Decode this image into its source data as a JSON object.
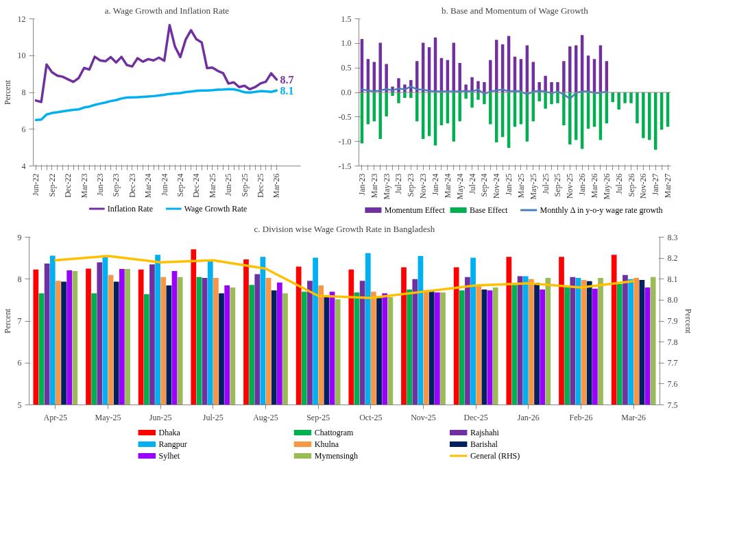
{
  "chart_data": [
    {
      "type": "line",
      "title": "a. Wage Growth and Inflation Rate",
      "ylabel": "Percent",
      "ylim": [
        4,
        12
      ],
      "yticks": [
        4,
        6,
        8,
        10,
        12
      ],
      "legend": "bottom",
      "categories": [
        "Jun-22",
        null,
        null,
        "Sep-22",
        null,
        null,
        "Dec-22",
        null,
        null,
        "Mar-23",
        null,
        null,
        "Jun-23",
        null,
        null,
        "Sep-23",
        null,
        null,
        "Dec-23",
        null,
        null,
        "Mar-24",
        null,
        null,
        "Jun-24",
        null,
        null,
        "Sep-24",
        null,
        null,
        "Dec-24",
        null,
        null,
        "Mar-25",
        null,
        null,
        "Jun-25",
        null,
        null,
        "Sep-25",
        null,
        null,
        "Dec-25",
        null,
        null,
        "Mar-26"
      ],
      "series": [
        {
          "name": "Inflation Rate",
          "color": "#7030a0",
          "values": [
            7.56,
            7.48,
            9.52,
            9.1,
            8.91,
            8.85,
            8.71,
            8.57,
            8.78,
            9.33,
            9.24,
            9.94,
            9.74,
            9.69,
            9.92,
            9.63,
            9.93,
            9.49,
            9.41,
            9.86,
            9.67,
            9.81,
            9.74,
            9.89,
            9.72,
            11.66,
            10.49,
            9.92,
            10.87,
            11.38,
            10.89,
            10.72,
            9.32,
            9.35,
            9.17,
            9.05,
            8.48,
            8.55,
            8.29,
            8.36,
            8.17,
            8.29,
            8.49,
            8.58,
            9.04,
            8.7
          ],
          "value_labels": [
            null,
            null,
            null,
            null,
            null,
            null,
            null,
            null,
            null,
            null,
            null,
            null,
            null,
            null,
            null,
            null,
            null,
            null,
            null,
            null,
            null,
            null,
            null,
            null,
            null,
            null,
            null,
            null,
            null,
            null,
            null,
            null,
            null,
            null,
            null,
            null,
            null,
            null,
            null,
            null,
            null,
            null,
            null,
            null,
            null,
            "8.7"
          ]
        },
        {
          "name": "Wage Growth Rate",
          "color": "#00b0f0",
          "values": [
            6.5,
            6.52,
            6.8,
            6.88,
            6.92,
            6.97,
            7.01,
            7.05,
            7.08,
            7.18,
            7.23,
            7.32,
            7.39,
            7.45,
            7.53,
            7.58,
            7.67,
            7.72,
            7.73,
            7.74,
            7.76,
            7.78,
            7.8,
            7.83,
            7.87,
            7.92,
            7.94,
            7.96,
            8.02,
            8.05,
            8.08,
            8.1,
            8.1,
            8.12,
            8.15,
            8.16,
            8.18,
            8.17,
            8.1,
            8.01,
            7.99,
            8.03,
            8.07,
            8.06,
            8.03,
            8.1
          ],
          "value_labels": [
            null,
            null,
            null,
            null,
            null,
            null,
            null,
            null,
            null,
            null,
            null,
            null,
            null,
            null,
            null,
            null,
            null,
            null,
            null,
            null,
            null,
            null,
            null,
            null,
            null,
            null,
            null,
            null,
            null,
            null,
            null,
            null,
            null,
            null,
            null,
            null,
            null,
            null,
            null,
            null,
            null,
            null,
            null,
            null,
            null,
            "8.1"
          ]
        }
      ]
    },
    {
      "type": "bar",
      "stacked": true,
      "title": "b. Base and Momentum of Wage Growth",
      "ylim": [
        -1.5,
        1.5
      ],
      "yticks": [
        {
          "value": -1.5,
          "label": "-1.5"
        },
        {
          "value": -1,
          "label": "-1.0"
        },
        {
          "value": -0.5,
          "label": "-0.5"
        },
        {
          "value": 0,
          "label": "0.0"
        },
        {
          "value": 0.5,
          "label": "0.5"
        },
        {
          "value": 1,
          "label": "1.0"
        },
        {
          "value": 1.5,
          "label": "1.5"
        }
      ],
      "legend": "bottom",
      "categories": [
        "Jan-23",
        null,
        "Mar-23",
        null,
        "May-23",
        null,
        "Jul-23",
        null,
        "Sep-23",
        null,
        "Nov-23",
        null,
        "Jan-24",
        null,
        "Mar-24",
        null,
        "May-24",
        null,
        "Jul-24",
        null,
        "Sep-24",
        null,
        "Nov-24",
        null,
        "Jan-25",
        null,
        "Mar-25",
        null,
        "May-25",
        null,
        "Jul-25",
        null,
        "Sep-25",
        null,
        "Nov-25",
        null,
        "Jan-26",
        null,
        "Mar-26",
        null,
        "May-26",
        null,
        "Jul-26",
        null,
        "Sep-26",
        null,
        "Nov-26",
        null,
        "Jan-27",
        null,
        "Mar-27"
      ],
      "series": [
        {
          "name": "Momentum Effect",
          "color": "#7030a0",
          "values": [
            1.09,
            0.68,
            0.62,
            1.01,
            0.58,
            0.12,
            0.29,
            0.16,
            0.25,
            0.64,
            1.01,
            0.92,
            1.12,
            0.7,
            0.66,
            1.01,
            0.6,
            0.16,
            0.31,
            0.23,
            0.21,
            0.66,
            1.07,
            0.98,
            1.15,
            0.73,
            0.68,
            0.96,
            0.62,
            0.21,
            0.34,
            0.21,
            0.21,
            0.64,
            0.94,
            0.96,
            1.17,
            0.75,
            0.68,
            0.96,
            0.64,
            null,
            null,
            null,
            null,
            null,
            null,
            null,
            null,
            null,
            null
          ]
        },
        {
          "name": "Base Effect",
          "color": "#00b050",
          "values": [
            -1.04,
            -0.65,
            -0.59,
            -0.95,
            -0.49,
            -0.07,
            -0.22,
            -0.11,
            -0.11,
            -0.59,
            -0.95,
            -0.89,
            -1.08,
            -0.67,
            -0.63,
            -1.0,
            -0.59,
            -0.13,
            -0.31,
            -0.15,
            -0.24,
            -0.65,
            -1.02,
            -0.91,
            -1.13,
            -0.7,
            -0.65,
            -1.0,
            -0.59,
            -0.18,
            -0.33,
            -0.24,
            -0.22,
            -0.67,
            -1.06,
            -0.97,
            -1.15,
            -0.74,
            -0.7,
            -0.97,
            -0.63,
            -0.2,
            -0.35,
            -0.22,
            -0.22,
            -0.63,
            -0.93,
            -0.97,
            -1.17,
            -0.76,
            -0.7
          ]
        },
        {
          "name": "Monthly Δ in y-o-y wage rate growth",
          "type": "line",
          "color": "#4a7ebb",
          "values": [
            0.06,
            0.04,
            0.02,
            0.04,
            0.07,
            0.04,
            0.08,
            0.06,
            0.12,
            0.06,
            0.06,
            0.03,
            0.02,
            0.02,
            0.02,
            0.02,
            0.02,
            0.03,
            0.02,
            0.06,
            -0.03,
            0.02,
            0.04,
            0.06,
            0.02,
            0.03,
            0.02,
            -0.04,
            0.02,
            0.03,
            0.02,
            -0.02,
            0.02,
            -0.04,
            -0.13,
            -0.01,
            0.02,
            0.02,
            -0.01,
            -0.01,
            0.02,
            null,
            null,
            null,
            null,
            null,
            null,
            null,
            null,
            null,
            null
          ]
        }
      ]
    },
    {
      "type": "bar",
      "title": "c. Division wise Wage Growth Rate in Bangladesh",
      "ylabel": "Percent",
      "y2label": "Percent",
      "ylim": [
        5,
        9
      ],
      "yticks": [
        5,
        6,
        7,
        8,
        9
      ],
      "y2lim": [
        7.5,
        8.3
      ],
      "y2ticks": [
        {
          "value": 7.5,
          "label": "7.5"
        },
        {
          "value": 7.6,
          "label": "7.6"
        },
        {
          "value": 7.7,
          "label": "7.7"
        },
        {
          "value": 7.8,
          "label": "7.8"
        },
        {
          "value": 7.9,
          "label": "7.9"
        },
        {
          "value": 8.0,
          "label": "8.0"
        },
        {
          "value": 8.1,
          "label": "8.1"
        },
        {
          "value": 8.2,
          "label": "8.2"
        },
        {
          "value": 8.3,
          "label": "8.3"
        }
      ],
      "legend": "bottom",
      "categories": [
        "Apr-25",
        "May-25",
        "Jun-25",
        "Jul-25",
        "Aug-25",
        "Sep-25",
        "Oct-25",
        "Nov-25",
        "Dec-25",
        "Jan-26",
        "Feb-26",
        "Mar-26"
      ],
      "series": [
        {
          "name": "Dhaka",
          "color": "#ff0000",
          "values": [
            8.23,
            8.25,
            8.23,
            8.71,
            8.47,
            8.3,
            8.23,
            8.28,
            8.28,
            8.53,
            8.53,
            8.58
          ]
        },
        {
          "name": "Chattogram",
          "color": "#00b050",
          "values": [
            7.66,
            7.66,
            7.64,
            8.05,
            7.86,
            7.7,
            7.68,
            7.75,
            7.73,
            7.86,
            7.84,
            7.88
          ]
        },
        {
          "name": "Rajshahi",
          "color": "#7030a0",
          "values": [
            8.37,
            8.4,
            8.35,
            8.03,
            8.12,
            7.96,
            7.96,
            8.0,
            8.05,
            8.07,
            8.05,
            8.1
          ]
        },
        {
          "name": "Rangpur",
          "color": "#00b0f0",
          "values": [
            8.56,
            8.53,
            8.58,
            8.45,
            8.53,
            8.51,
            8.62,
            8.55,
            8.51,
            8.07,
            8.03,
            8.0
          ]
        },
        {
          "name": "Khulna",
          "color": "#f79646",
          "values": [
            7.96,
            8.1,
            8.05,
            8.03,
            8.03,
            7.85,
            7.7,
            7.74,
            7.84,
            8.0,
            7.98,
            8.03
          ]
        },
        {
          "name": "Barishal",
          "color": "#002060",
          "values": [
            7.94,
            7.94,
            7.85,
            7.66,
            7.73,
            7.57,
            7.55,
            7.7,
            7.75,
            7.91,
            7.95,
            7.98
          ]
        },
        {
          "name": "Sylhet",
          "color": "#9900ff",
          "values": [
            8.21,
            8.24,
            8.19,
            7.85,
            7.92,
            7.7,
            7.66,
            7.68,
            7.73,
            7.75,
            7.77,
            7.8
          ]
        },
        {
          "name": "Mymensingh",
          "color": "#9bbb59",
          "values": [
            8.19,
            8.24,
            8.05,
            7.8,
            7.66,
            7.52,
            7.57,
            7.68,
            7.8,
            8.03,
            8.03,
            8.05
          ]
        },
        {
          "name": "General (RHS)",
          "type": "line",
          "axis": "y2",
          "color": "#ffc000",
          "values": [
            8.19,
            8.21,
            8.18,
            8.19,
            8.15,
            8.02,
            8.01,
            8.04,
            8.07,
            8.08,
            8.06,
            8.09
          ]
        }
      ]
    }
  ]
}
